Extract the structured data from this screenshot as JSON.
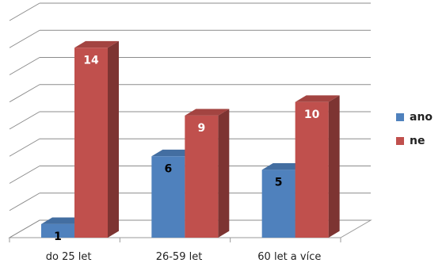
{
  "chart_data": {
    "type": "bar",
    "categories": [
      "do 25 let",
      "26-59 let",
      "60 let a více"
    ],
    "series": [
      {
        "name": "ano",
        "values": [
          1,
          6,
          5
        ],
        "color": "#4f81bd",
        "label_color": "#000000"
      },
      {
        "name": "ne",
        "values": [
          14,
          9,
          10
        ],
        "color": "#c0504d",
        "label_color": "#ffffff"
      }
    ],
    "ylim": [
      0,
      16
    ],
    "grid": true,
    "legend": "right",
    "style": "3d-column"
  }
}
